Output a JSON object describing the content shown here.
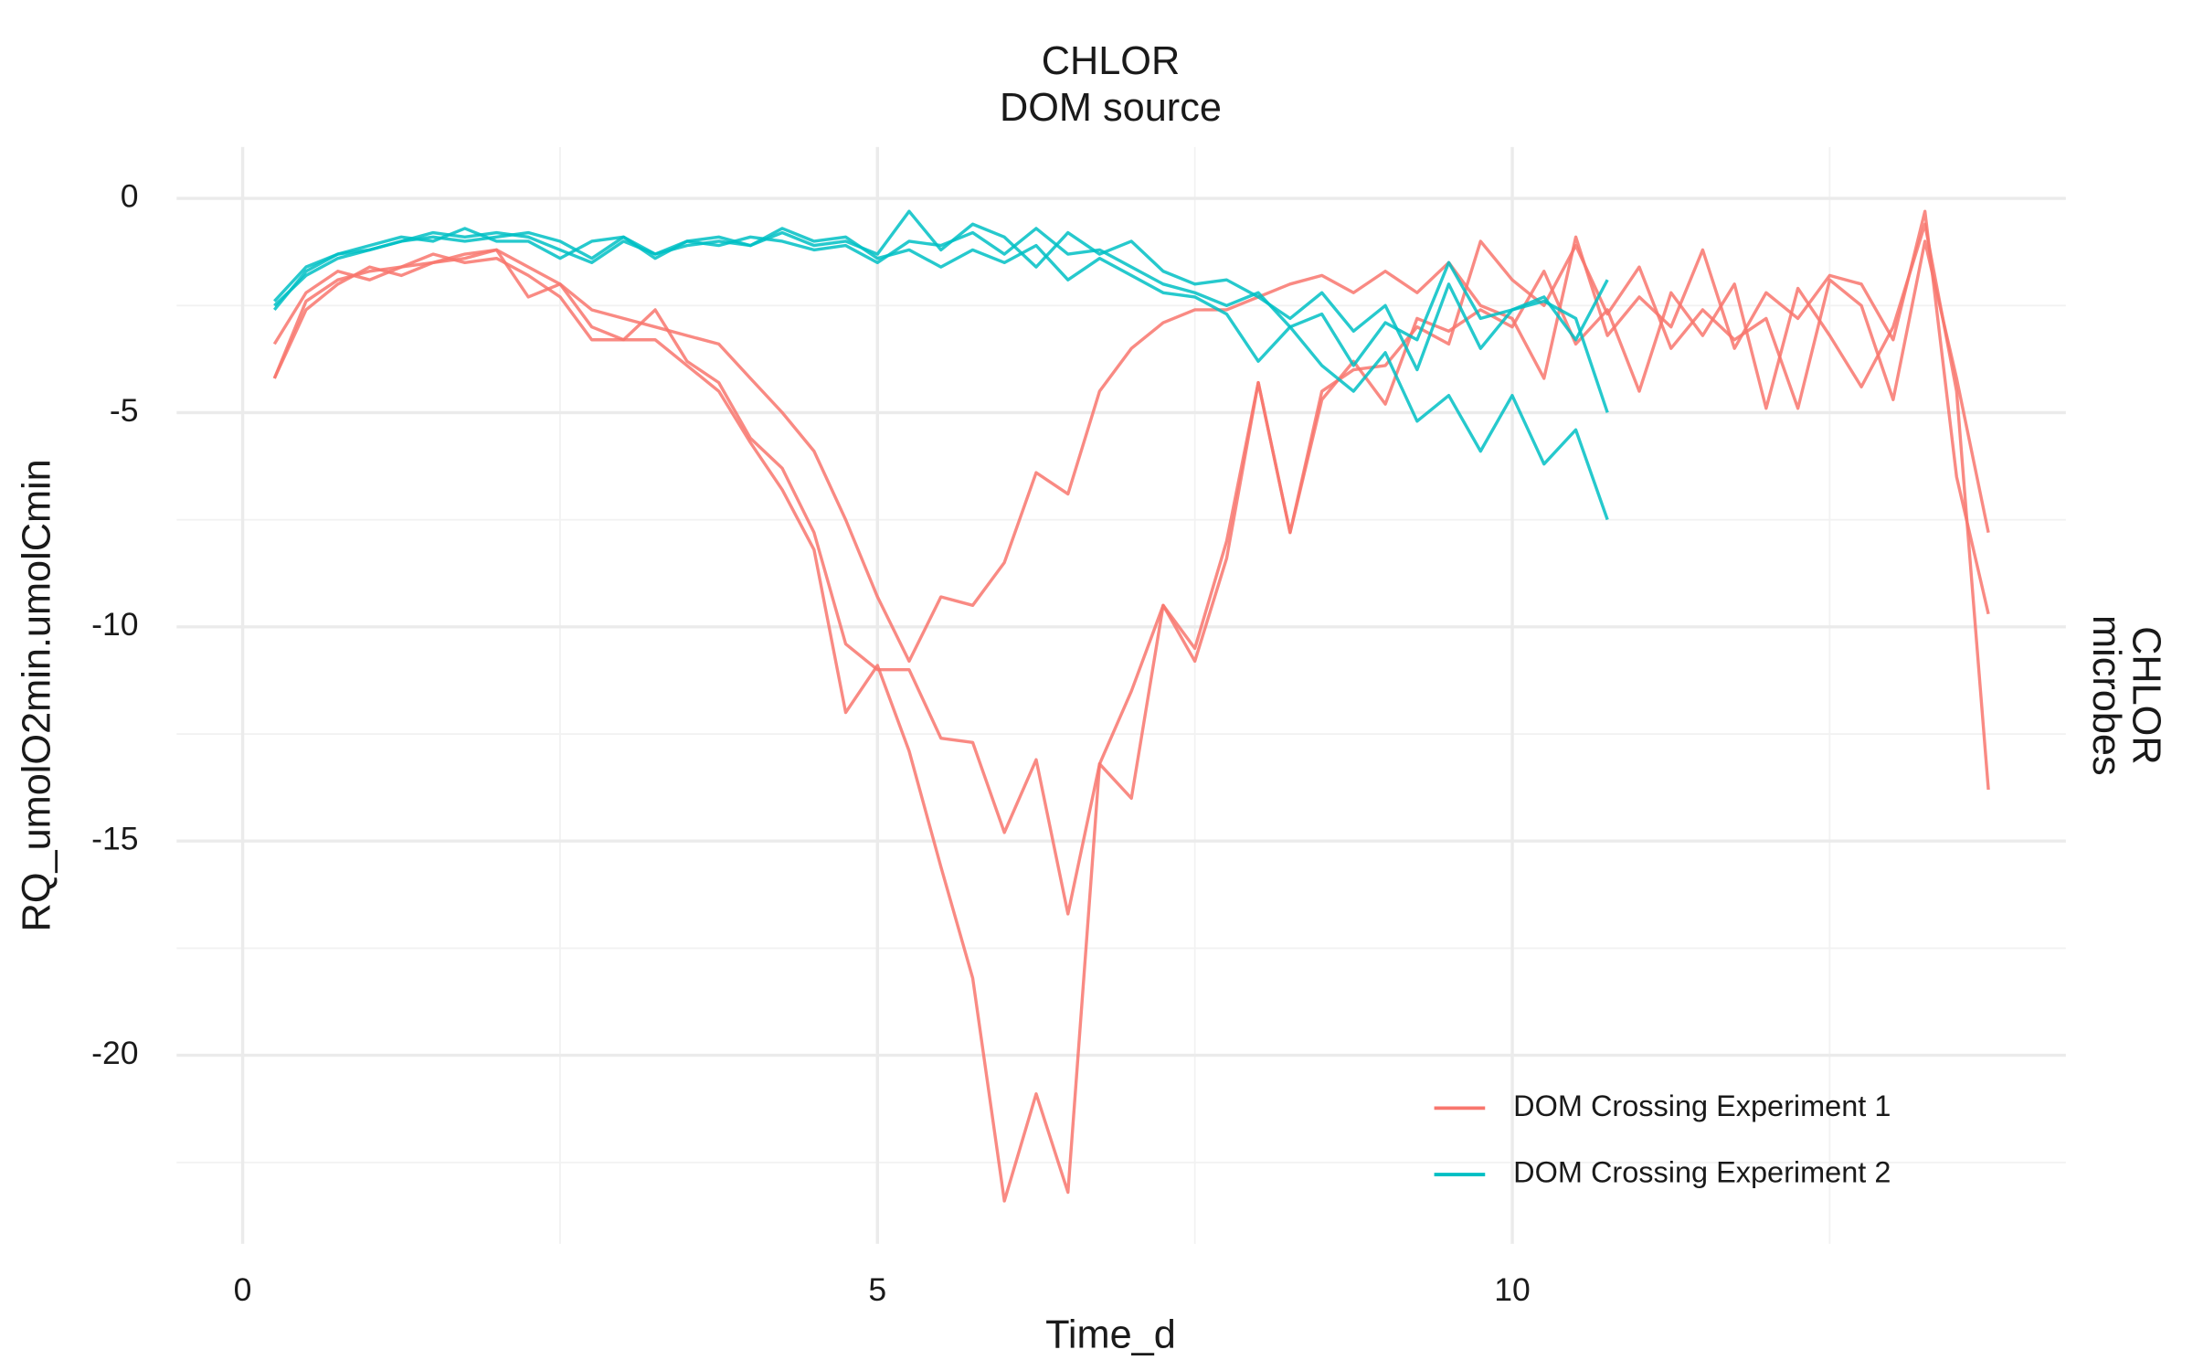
{
  "chart_data": {
    "type": "line",
    "strip_top": [
      "CHLOR",
      "DOM source"
    ],
    "strip_right": [
      "CHLOR",
      "microbes"
    ],
    "x_label": "Time_d",
    "y_label": "RQ_umolO2min.umolCmin",
    "xlim": [
      -0.52,
      14.36
    ],
    "ylim": [
      -24.4,
      1.2
    ],
    "xticks": [
      0,
      5,
      10
    ],
    "yticks": [
      -20,
      -15,
      -10,
      -5,
      0
    ],
    "xminor": [
      2.5,
      7.5,
      12.5
    ],
    "yminor": [
      -22.5,
      -17.5,
      -12.5,
      -7.5,
      -2.5
    ],
    "grid": true,
    "legend": "bottom-right",
    "series": [
      {
        "name": "DOM Crossing Experiment 1",
        "color": "#F8766D",
        "x": [
          0.25,
          0.5,
          0.75,
          1,
          1.25,
          1.5,
          1.75,
          2,
          2.25,
          2.5,
          2.75,
          3,
          3.25,
          3.5,
          3.75,
          4,
          4.25,
          4.5,
          4.75,
          5,
          5.25,
          5.5,
          5.75,
          6,
          6.25,
          6.5,
          6.75,
          7,
          7.25,
          7.5,
          7.75,
          8,
          8.25,
          8.5,
          8.75,
          9,
          9.25,
          9.5,
          9.75,
          10,
          10.25,
          10.5,
          10.75,
          11,
          11.25,
          11.5,
          11.75,
          12,
          12.25,
          12.5,
          12.75,
          13,
          13.25,
          13.5,
          13.75
        ],
        "replicates": [
          [
            -4.2,
            -2.4,
            -1.9,
            -1.7,
            -1.6,
            -1.5,
            -1.3,
            -1.2,
            -1.6,
            -2.0,
            -2.6,
            -2.8,
            -3.0,
            -3.2,
            -3.4,
            -4.2,
            -5.0,
            -5.9,
            -7.5,
            -9.3,
            -10.8,
            -9.3,
            -9.5,
            -8.5,
            -6.4,
            -6.9,
            -4.5,
            -3.5,
            -2.9,
            -2.6,
            -2.6,
            -2.3,
            -2.0,
            -1.8,
            -2.2,
            -1.7,
            -2.2,
            -1.5,
            -2.5,
            -2.8,
            -4.2,
            -0.9,
            -3.2,
            -2.3,
            -3.0,
            -1.2,
            -3.5,
            -2.2,
            -2.8,
            -1.8,
            -2.0,
            -3.3,
            -0.3,
            -6.5,
            -9.7
          ],
          [
            -4.2,
            -2.6,
            -2.0,
            -1.6,
            -1.8,
            -1.5,
            -1.4,
            -1.2,
            -2.3,
            -2.0,
            -3.0,
            -3.3,
            -2.6,
            -3.8,
            -4.3,
            -5.6,
            -6.3,
            -7.8,
            -10.4,
            -11.0,
            -11.0,
            -12.6,
            -12.7,
            -14.8,
            -13.1,
            -16.7,
            -13.2,
            -11.5,
            -9.5,
            -10.8,
            -8.4,
            -4.3,
            -7.8,
            -4.5,
            -4.0,
            -3.9,
            -3.0,
            -3.4,
            -1.0,
            -1.9,
            -2.5,
            -1.1,
            -2.7,
            -1.6,
            -3.5,
            -2.6,
            -3.3,
            -2.8,
            -4.9,
            -1.9,
            -2.5,
            -4.7,
            -1.0,
            -4.2,
            -7.8
          ],
          [
            -3.4,
            -2.2,
            -1.7,
            -1.9,
            -1.6,
            -1.3,
            -1.5,
            -1.4,
            -1.8,
            -2.3,
            -3.3,
            -3.3,
            -3.3,
            -3.9,
            -4.5,
            -5.7,
            -6.8,
            -8.2,
            -12.0,
            -10.9,
            -12.9,
            -15.6,
            -18.2,
            -23.4,
            -20.9,
            -23.2,
            -13.2,
            -14.0,
            -9.5,
            -10.5,
            -8.0,
            -4.3,
            -7.8,
            -4.7,
            -3.8,
            -4.8,
            -2.8,
            -3.1,
            -2.6,
            -3.0,
            -1.7,
            -3.4,
            -2.6,
            -4.5,
            -2.2,
            -3.2,
            -2.0,
            -4.9,
            -2.1,
            -3.2,
            -4.4,
            -3.0,
            -0.6,
            -4.5,
            -13.8
          ]
        ]
      },
      {
        "name": "DOM Crossing Experiment 2",
        "color": "#00BFC4",
        "x": [
          0.25,
          0.5,
          0.75,
          1,
          1.25,
          1.5,
          1.75,
          2,
          2.25,
          2.5,
          2.75,
          3,
          3.25,
          3.5,
          3.75,
          4,
          4.25,
          4.5,
          4.75,
          5,
          5.25,
          5.5,
          5.75,
          6,
          6.25,
          6.5,
          6.75,
          7,
          7.25,
          7.5,
          7.75,
          8,
          8.25,
          8.5,
          8.75,
          9,
          9.25,
          9.5,
          9.75,
          10,
          10.25,
          10.5,
          10.75
        ],
        "replicates": [
          [
            -2.5,
            -1.8,
            -1.4,
            -1.2,
            -1.0,
            -0.8,
            -0.9,
            -0.8,
            -0.9,
            -1.2,
            -1.5,
            -1.0,
            -1.3,
            -1.1,
            -1.0,
            -1.1,
            -0.8,
            -1.1,
            -1.0,
            -1.3,
            -0.3,
            -1.2,
            -0.6,
            -0.9,
            -1.6,
            -0.8,
            -1.3,
            -1.0,
            -1.7,
            -2.0,
            -1.9,
            -2.3,
            -2.8,
            -2.2,
            -3.1,
            -2.5,
            -4.0,
            -2.0,
            -3.5,
            -2.6,
            -2.3,
            -3.3,
            -1.9
          ],
          [
            -2.6,
            -1.7,
            -1.3,
            -1.1,
            -0.9,
            -1.0,
            -0.7,
            -1.0,
            -1.0,
            -1.4,
            -1.0,
            -0.9,
            -1.3,
            -1.0,
            -1.1,
            -0.9,
            -1.0,
            -1.2,
            -1.1,
            -1.5,
            -1.0,
            -1.1,
            -0.8,
            -1.3,
            -0.7,
            -1.3,
            -1.2,
            -1.6,
            -2.0,
            -2.2,
            -2.5,
            -2.2,
            -3.0,
            -2.7,
            -3.9,
            -2.9,
            -3.3,
            -1.5,
            -2.8,
            -2.6,
            -2.4,
            -2.8,
            -5.0
          ],
          [
            -2.4,
            -1.6,
            -1.3,
            -1.2,
            -1.0,
            -0.9,
            -1.0,
            -0.9,
            -0.8,
            -1.0,
            -1.4,
            -0.9,
            -1.4,
            -1.0,
            -0.9,
            -1.1,
            -0.7,
            -1.0,
            -0.9,
            -1.4,
            -1.2,
            -1.6,
            -1.2,
            -1.5,
            -1.1,
            -1.9,
            -1.4,
            -1.8,
            -2.2,
            -2.3,
            -2.7,
            -3.8,
            -3.0,
            -3.9,
            -4.5,
            -3.6,
            -5.2,
            -4.6,
            -5.9,
            -4.6,
            -6.2,
            -5.4,
            -7.5
          ]
        ]
      }
    ]
  }
}
